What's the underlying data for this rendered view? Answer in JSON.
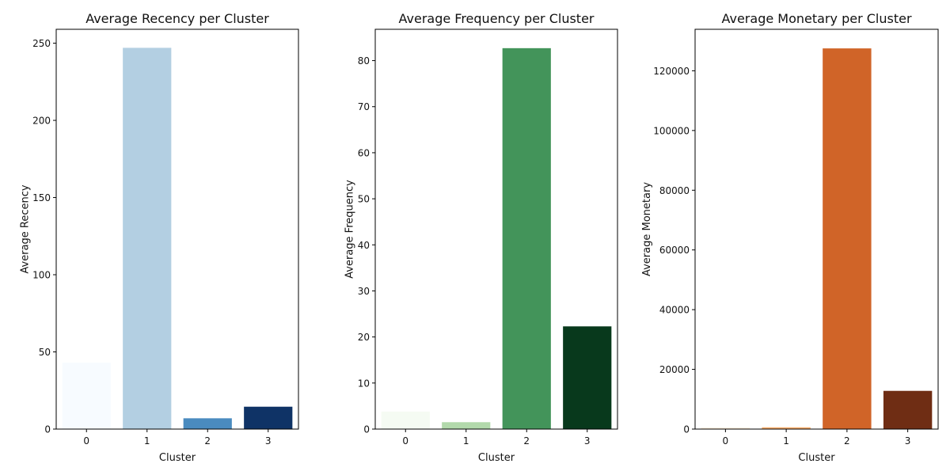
{
  "chart_data": [
    {
      "type": "bar",
      "title": "Average Recency per Cluster",
      "xlabel": "Cluster",
      "ylabel": "Average Recency",
      "categories": [
        "0",
        "1",
        "2",
        "3"
      ],
      "values": [
        43,
        247,
        7,
        14.5
      ],
      "colors": [
        "#f7fbff",
        "#b3cfe2",
        "#4a8bbf",
        "#0f3366"
      ],
      "ylim": [
        0,
        259
      ],
      "yticks": [
        0,
        50,
        100,
        150,
        200,
        250
      ],
      "ytick_labels": [
        "0",
        "50",
        "100",
        "150",
        "200",
        "250"
      ],
      "grid": false
    },
    {
      "type": "bar",
      "title": "Average Frequency per Cluster",
      "xlabel": "Cluster",
      "ylabel": "Average Frequency",
      "categories": [
        "0",
        "1",
        "2",
        "3"
      ],
      "values": [
        3.8,
        1.5,
        82.7,
        22.3
      ],
      "colors": [
        "#f5fbf3",
        "#b2d9ab",
        "#43945a",
        "#08391c"
      ],
      "ylim": [
        0,
        86.8
      ],
      "yticks": [
        0,
        10,
        20,
        30,
        40,
        50,
        60,
        70,
        80
      ],
      "ytick_labels": [
        "0",
        "10",
        "20",
        "30",
        "40",
        "50",
        "60",
        "70",
        "80"
      ],
      "grid": false
    },
    {
      "type": "bar",
      "title": "Average Monetary per Cluster",
      "xlabel": "Cluster",
      "ylabel": "Average Monetary",
      "categories": [
        "0",
        "1",
        "2",
        "3"
      ],
      "values": [
        500,
        600,
        127500,
        12800
      ],
      "colors": [
        "#fff0e0",
        "#fbae6b",
        "#d06428",
        "#6f2d14"
      ],
      "ylim": [
        0,
        133900
      ],
      "yticks": [
        0,
        20000,
        40000,
        60000,
        80000,
        100000,
        120000
      ],
      "ytick_labels": [
        "0",
        "20000",
        "40000",
        "60000",
        "80000",
        "100000",
        "120000"
      ],
      "grid": false
    }
  ]
}
